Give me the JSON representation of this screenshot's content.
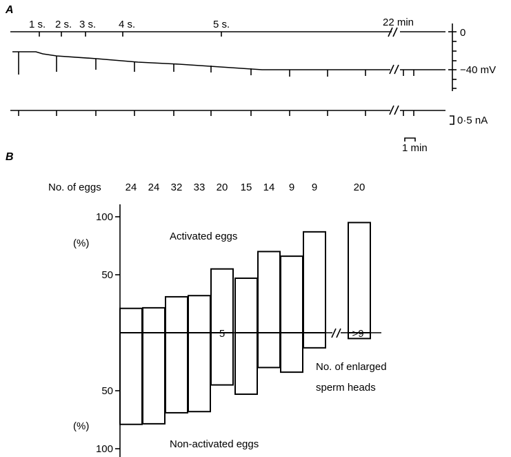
{
  "colors": {
    "ink": "#000000",
    "background": "#ffffff"
  },
  "panel_a": {
    "label": "A",
    "stimulus_labels": [
      "1 s.",
      "2 s.",
      "3 s.",
      "4 s.",
      "5 s."
    ],
    "time_break_label": "22 min",
    "potential_zero_label": "0",
    "potential_label": "−40 mV",
    "current_scale_label": "0·5 nA",
    "time_scale_label": "1 min"
  },
  "chart_data": {
    "type": "bar",
    "title": "",
    "panel_label": "B",
    "count_header": "No. of eggs",
    "egg_counts": [
      "24",
      "24",
      "32",
      "33",
      "20",
      "15",
      "14",
      "9",
      "9",
      "20"
    ],
    "activated_label": "Activated eggs",
    "non_activated_label": "Non-activated eggs",
    "yunit_upper": "(%)",
    "yunit_lower": "(%)",
    "ytick_labels_upper": [
      "100",
      "50"
    ],
    "ytick_labels_lower": [
      "50",
      "100"
    ],
    "sperm_axis_label": "No. of enlarged sperm heads",
    "sperm_axis_label_line1": "No. of enlarged",
    "sperm_axis_label_line2": "sperm heads",
    "sperm_axis_ticks": [
      "5",
      ">9"
    ],
    "ylim": [
      0,
      100
    ],
    "activated_percent": [
      21,
      21.5,
      31,
      32,
      55,
      47,
      70,
      66,
      87,
      95
    ],
    "non_activated_percent": [
      79,
      78.5,
      69,
      68,
      45,
      53,
      30,
      34,
      13,
      5
    ]
  }
}
